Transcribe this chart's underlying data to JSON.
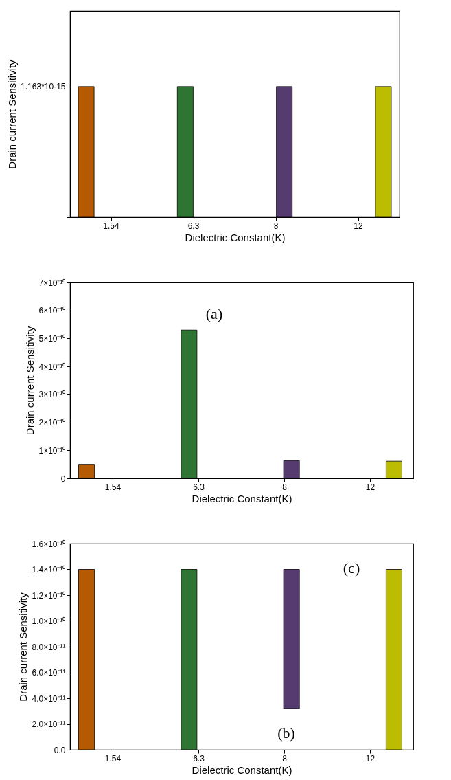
{
  "chart_data": [
    {
      "type": "bar",
      "categories": [
        "1.54",
        "6.3",
        "8",
        "12"
      ],
      "xlabel": "Dielectric Constant(K)",
      "ylabel": "Drain current Sensitivity",
      "ylim": [
        0,
        1.835e-15
      ],
      "yticks": [
        {
          "value": 0,
          "label": null
        },
        {
          "value": 1.163e-15,
          "label": "1.163*10-15"
        }
      ],
      "series": [
        {
          "color": "#b55a00",
          "values": [
            1.163e-15,
            null,
            null,
            null
          ]
        },
        {
          "color": "#2e7432",
          "values": [
            null,
            1.163e-15,
            null,
            null
          ]
        },
        {
          "color": "#553b70",
          "values": [
            null,
            null,
            1.163e-15,
            null
          ]
        },
        {
          "color": "#bcbc00",
          "values": [
            null,
            null,
            null,
            1.163e-15
          ]
        }
      ]
    },
    {
      "type": "bar",
      "categories": [
        "1.54",
        "6.3",
        "8",
        "12"
      ],
      "xlabel": "Dielectric Constant(K)",
      "ylabel": "Drain current Sensitivity",
      "ylim": [
        0,
        7e-10
      ],
      "yticks": [
        {
          "value": 0,
          "label": "0"
        },
        {
          "value": 1e-10,
          "label": "1×10⁻¹⁰"
        },
        {
          "value": 2e-10,
          "label": "2×10⁻¹⁰"
        },
        {
          "value": 3e-10,
          "label": "3×10⁻¹⁰"
        },
        {
          "value": 4e-10,
          "label": "4×10⁻¹⁰"
        },
        {
          "value": 5e-10,
          "label": "5×10⁻¹⁰"
        },
        {
          "value": 6e-10,
          "label": "6×10⁻¹⁰"
        },
        {
          "value": 7e-10,
          "label": "7×10⁻¹⁰"
        }
      ],
      "annotations": [
        "(a)"
      ],
      "series": [
        {
          "color": "#b55a00",
          "values": [
            5e-11,
            null,
            null,
            null
          ]
        },
        {
          "color": "#2e7432",
          "values": [
            null,
            5.3e-10,
            null,
            null
          ]
        },
        {
          "color": "#553b70",
          "values": [
            null,
            null,
            6.3e-11,
            null
          ]
        },
        {
          "color": "#bcbc00",
          "values": [
            null,
            null,
            null,
            6.1e-11
          ]
        }
      ]
    },
    {
      "type": "bar",
      "categories": [
        "1.54",
        "6.3",
        "8",
        "12"
      ],
      "xlabel": "Dielectric Constant(K)",
      "ylabel": "Drain current Sensitivity",
      "ylim": [
        0,
        1.6e-10
      ],
      "yticks": [
        {
          "value": 0,
          "label": "0.0"
        },
        {
          "value": 2e-11,
          "label": "2.0×10⁻¹¹"
        },
        {
          "value": 4e-11,
          "label": "4.0×10⁻¹¹"
        },
        {
          "value": 6e-11,
          "label": "6.0×10⁻¹¹"
        },
        {
          "value": 8e-11,
          "label": "8.0×10⁻¹¹"
        },
        {
          "value": 1e-10,
          "label": "1.0×10⁻¹⁰"
        },
        {
          "value": 1.2e-10,
          "label": "1.2×10⁻¹⁰"
        },
        {
          "value": 1.4e-10,
          "label": "1.4×10⁻¹⁰"
        },
        {
          "value": 1.6e-10,
          "label": "1.6×10⁻¹⁰"
        }
      ],
      "annotations": [
        "(c)",
        "(b)"
      ],
      "series": [
        {
          "color": "#b55a00",
          "values": [
            1.4e-10,
            null,
            null,
            null
          ]
        },
        {
          "color": "#2e7432",
          "values": [
            null,
            1.4e-10,
            null,
            null
          ]
        },
        {
          "color": "#553b70",
          "values": [
            null,
            null,
            1.08e-10,
            null
          ],
          "base": [
            null,
            null,
            3.2e-11,
            null
          ]
        },
        {
          "color": "#bcbc00",
          "values": [
            null,
            null,
            null,
            1.4e-10
          ]
        }
      ]
    }
  ]
}
